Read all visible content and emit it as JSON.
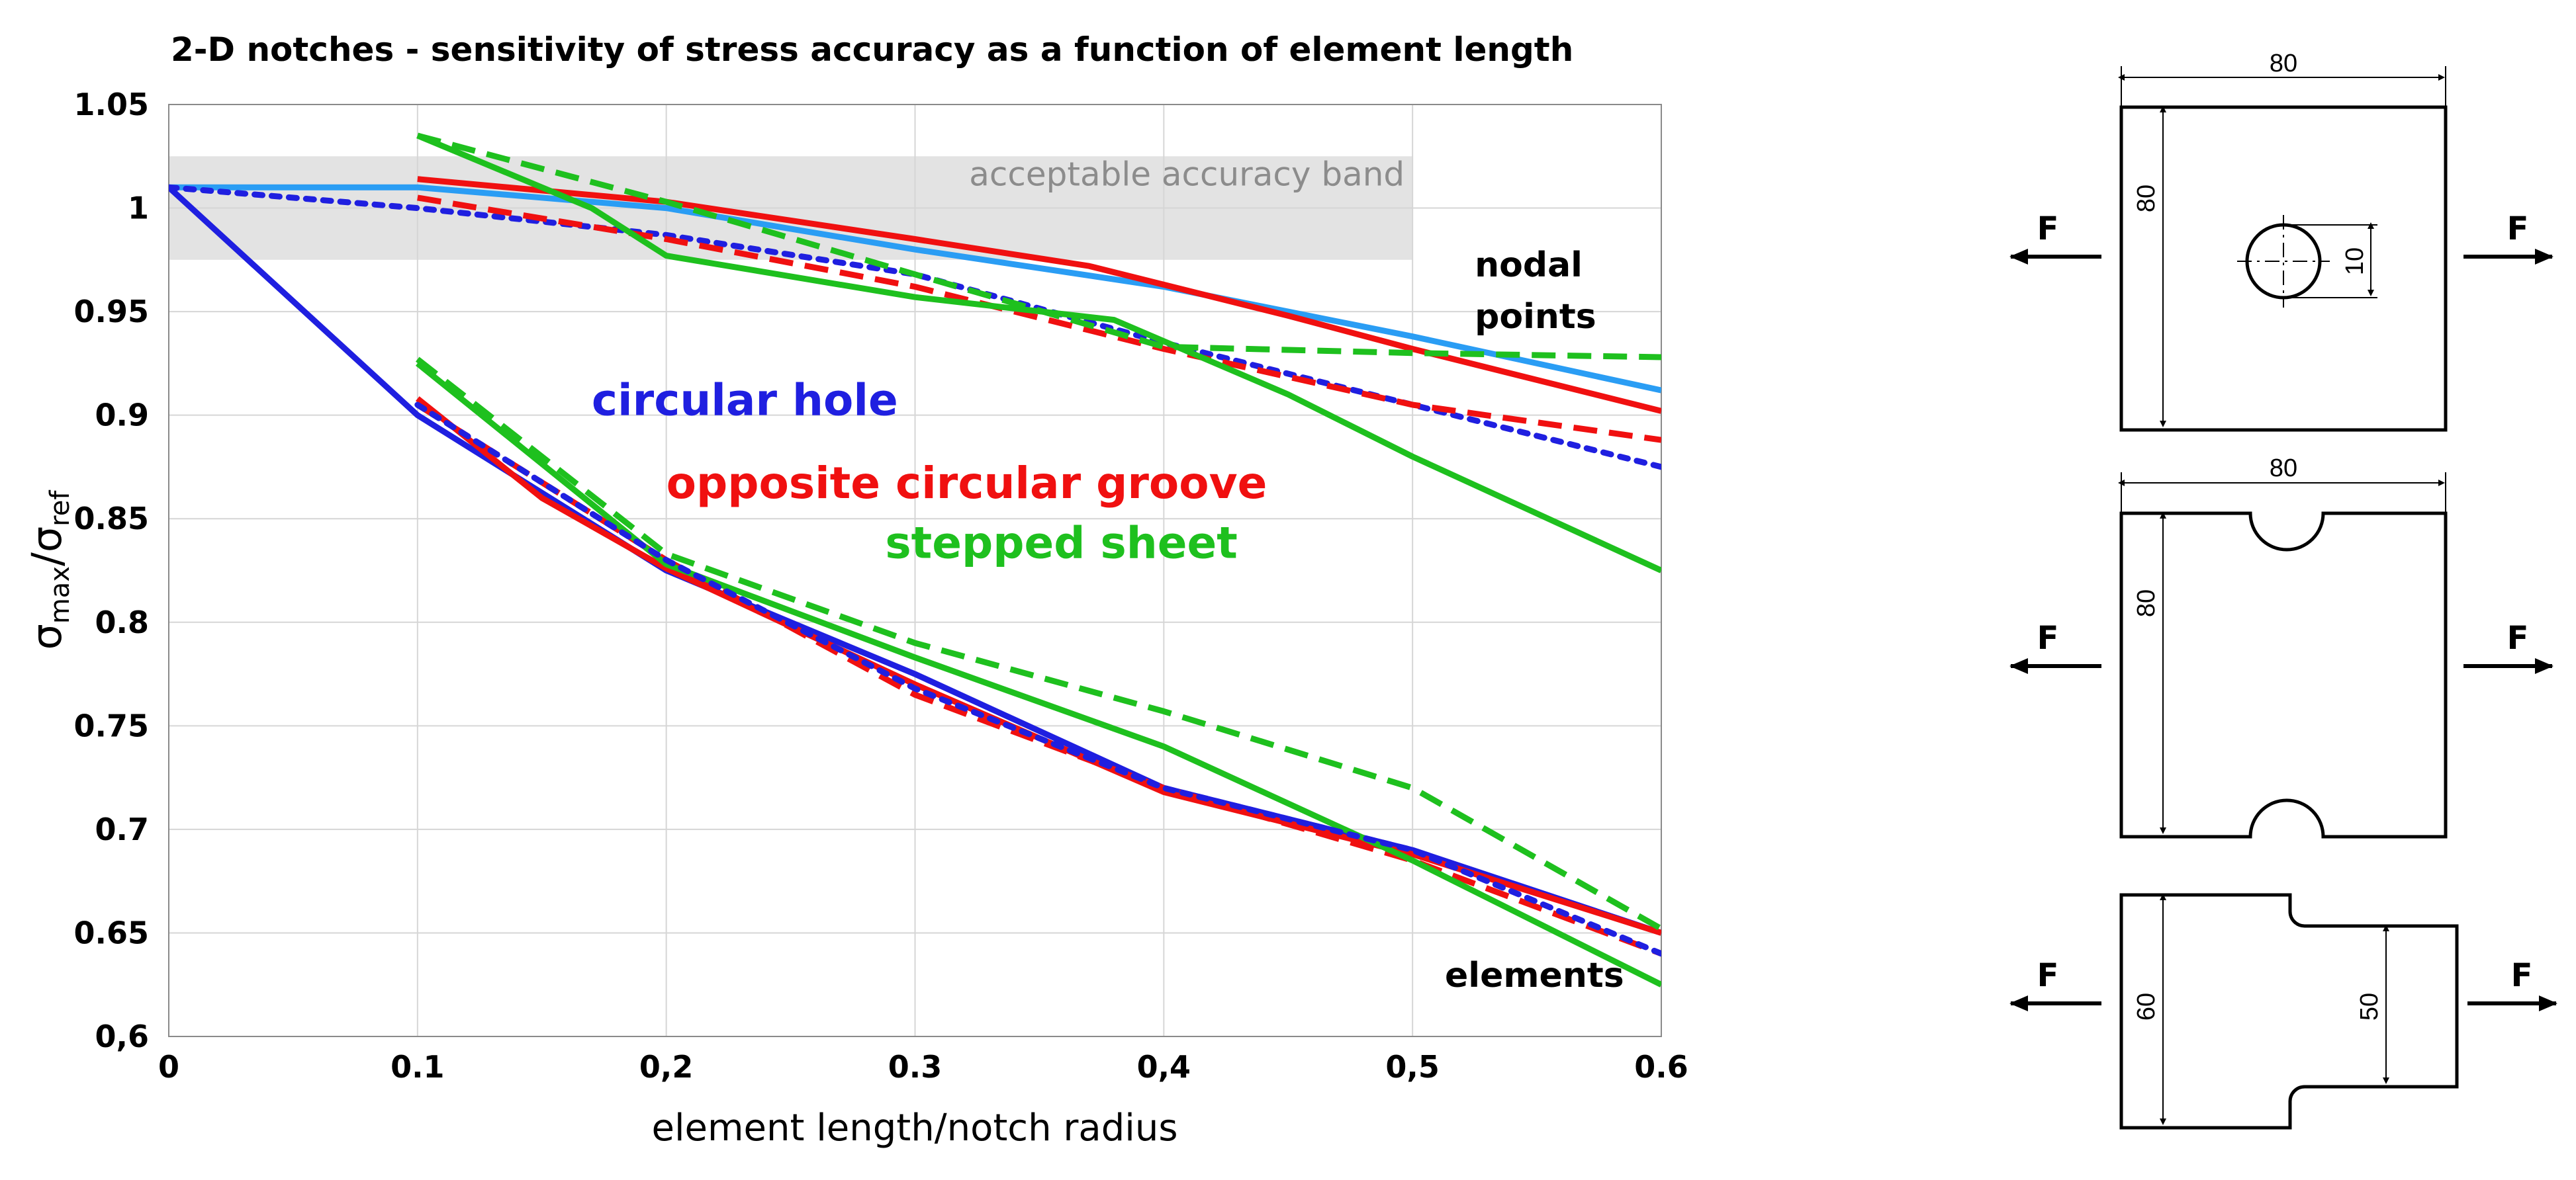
{
  "chart_data": {
    "type": "line",
    "title": "2-D notches - sensitivity of stress accuracy as a function of element length",
    "xlabel": "element length/notch radius",
    "ylabel": {
      "main": "σ",
      "sub_max": "max",
      "slash": "/σ",
      "sub_ref": "ref"
    },
    "xlim": [
      0,
      0.6
    ],
    "ylim": [
      0.6,
      1.05
    ],
    "grid": true,
    "x_ticks": [
      {
        "value": 0,
        "label": "0"
      },
      {
        "value": 0.1,
        "label": "0.1"
      },
      {
        "value": 0.2,
        "label": "0,2"
      },
      {
        "value": 0.3,
        "label": "0.3"
      },
      {
        "value": 0.4,
        "label": "0,4"
      },
      {
        "value": 0.5,
        "label": "0,5"
      },
      {
        "value": 0.6,
        "label": "0.6"
      }
    ],
    "y_ticks": [
      {
        "value": 1.05,
        "label": "1.05"
      },
      {
        "value": 1.0,
        "label": "1"
      },
      {
        "value": 0.95,
        "label": "0.95"
      },
      {
        "value": 0.9,
        "label": "0.9"
      },
      {
        "value": 0.85,
        "label": "0.85"
      },
      {
        "value": 0.8,
        "label": "0.8"
      },
      {
        "value": 0.75,
        "label": "0.75"
      },
      {
        "value": 0.7,
        "label": "0.7"
      },
      {
        "value": 0.65,
        "label": "0.65"
      },
      {
        "value": 0.6,
        "label": "0,6"
      }
    ],
    "band": {
      "x": [
        0,
        0.5
      ],
      "y": [
        0.975,
        1.025
      ],
      "label": "acceptable accuracy band",
      "color": "#d9d9d9"
    },
    "annotations": [
      {
        "text": "nodal",
        "x": 0.525,
        "y": 0.967
      },
      {
        "text": "points",
        "x": 0.525,
        "y": 0.942
      },
      {
        "text": "elements",
        "x": 0.513,
        "y": 0.624
      }
    ],
    "legend": [
      {
        "text": "circular hole",
        "color": "#1f1fe0",
        "x": 0.17,
        "y": 0.9
      },
      {
        "text": "opposite circular groove",
        "color": "#f01010",
        "x": 0.2,
        "y": 0.86
      },
      {
        "text": "stepped sheet",
        "color": "#1ec01e",
        "x": 0.288,
        "y": 0.831
      }
    ],
    "series": [
      {
        "color": "#2a9df4",
        "style": "solid",
        "x": [
          0,
          0.1,
          0.2,
          0.3,
          0.4,
          0.5,
          0.6
        ],
        "y": [
          1.01,
          1.01,
          1.0,
          0.98,
          0.962,
          0.938,
          0.912
        ]
      },
      {
        "color": "#1f1fe0",
        "style": "dotted",
        "x": [
          0,
          0.1,
          0.2,
          0.3,
          0.4,
          0.5,
          0.6
        ],
        "y": [
          1.01,
          1.0,
          0.987,
          0.968,
          0.935,
          0.905,
          0.875
        ]
      },
      {
        "color": "#f01010",
        "style": "solid",
        "x": [
          0.1,
          0.2,
          0.3,
          0.37,
          0.45,
          0.5,
          0.6
        ],
        "y": [
          1.014,
          1.003,
          0.985,
          0.972,
          0.948,
          0.932,
          0.902
        ]
      },
      {
        "color": "#f01010",
        "style": "dashed",
        "x": [
          0.1,
          0.2,
          0.3,
          0.4,
          0.5,
          0.6
        ],
        "y": [
          1.005,
          0.985,
          0.962,
          0.932,
          0.905,
          0.888
        ]
      },
      {
        "color": "#1ec01e",
        "style": "solid",
        "x": [
          0.1,
          0.17,
          0.2,
          0.3,
          0.38,
          0.45,
          0.5,
          0.6
        ],
        "y": [
          1.035,
          1.0,
          0.977,
          0.957,
          0.946,
          0.91,
          0.88,
          0.825
        ]
      },
      {
        "color": "#1ec01e",
        "style": "dashed",
        "x": [
          0.1,
          0.2,
          0.3,
          0.4,
          0.5,
          0.6
        ],
        "y": [
          1.035,
          1.003,
          0.968,
          0.933,
          0.93,
          0.928
        ]
      },
      {
        "color": "#1f1fe0",
        "style": "solid",
        "x": [
          0,
          0.1,
          0.2,
          0.3,
          0.4,
          0.5,
          0.6
        ],
        "y": [
          1.01,
          0.9,
          0.825,
          0.775,
          0.72,
          0.69,
          0.65
        ]
      },
      {
        "color": "#f01010",
        "style": "solid",
        "x": [
          0.1,
          0.15,
          0.2,
          0.3,
          0.4,
          0.5,
          0.6
        ],
        "y": [
          0.908,
          0.86,
          0.826,
          0.77,
          0.718,
          0.688,
          0.65
        ]
      },
      {
        "color": "#f01010",
        "style": "dashed",
        "x": [
          0.1,
          0.2,
          0.3,
          0.4,
          0.5,
          0.6
        ],
        "y": [
          0.905,
          0.83,
          0.765,
          0.72,
          0.685,
          0.64
        ]
      },
      {
        "color": "#1ec01e",
        "style": "solid",
        "x": [
          0.1,
          0.2,
          0.3,
          0.4,
          0.5,
          0.6
        ],
        "y": [
          0.925,
          0.828,
          0.783,
          0.74,
          0.685,
          0.625
        ]
      },
      {
        "color": "#1ec01e",
        "style": "dashed",
        "x": [
          0.1,
          0.2,
          0.3,
          0.4,
          0.5,
          0.6
        ],
        "y": [
          0.927,
          0.833,
          0.79,
          0.757,
          0.72,
          0.652
        ]
      },
      {
        "color": "#1f1fe0",
        "style": "dotted",
        "x": [
          0.1,
          0.2,
          0.3,
          0.4,
          0.5,
          0.6
        ],
        "y": [
          0.905,
          0.83,
          0.768,
          0.72,
          0.69,
          0.64
        ]
      }
    ]
  },
  "diagrams": {
    "force_label": "F",
    "plate_hole": {
      "width": "80",
      "height": "80",
      "hole": "10"
    },
    "plate_groove": {
      "width": "80",
      "height": "80"
    },
    "plate_step": {
      "height_left": "60",
      "height_right": "50"
    }
  }
}
